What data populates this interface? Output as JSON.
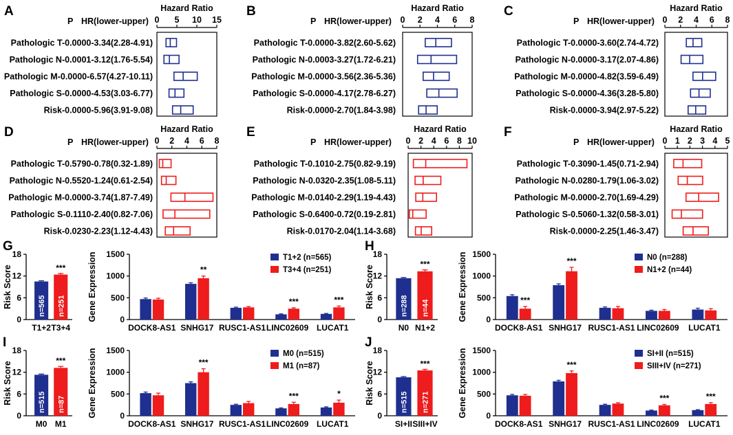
{
  "colors": {
    "blue": "#1f2f8f",
    "red": "#ee1c1c",
    "black": "#000000"
  },
  "chart_data": [
    {
      "id": "forest-A",
      "panel_label": "A",
      "type": "forest",
      "title": "Hazard Ratio",
      "p_header": "P",
      "hr_header": "HR(lower-upper)",
      "axis_ticks": [
        0,
        5,
        10,
        15
      ],
      "xlim": [
        0,
        15
      ],
      "color": "blue",
      "rows": [
        {
          "label": "Pathologic T-0.0000-3.34(2.28-4.91)",
          "lower": 2.28,
          "hr": 3.34,
          "upper": 4.91
        },
        {
          "label": "Pathologic N-0.0001-3.12(1.76-5.54)",
          "lower": 1.76,
          "hr": 3.12,
          "upper": 5.54
        },
        {
          "label": "Pathologic M-0.0000-6.57(4.27-10.11)",
          "lower": 4.27,
          "hr": 6.57,
          "upper": 10.11
        },
        {
          "label": "Pathologic S-0.0000-4.53(3.03-6.77)",
          "lower": 3.03,
          "hr": 4.53,
          "upper": 6.77
        },
        {
          "label": "Risk-0.0000-5.96(3.91-9.08)",
          "lower": 3.91,
          "hr": 5.96,
          "upper": 9.08
        }
      ]
    },
    {
      "id": "forest-B",
      "panel_label": "B",
      "type": "forest",
      "title": "Hazard Ratio",
      "p_header": "P",
      "hr_header": "HR(lower-upper)",
      "axis_ticks": [
        0,
        2,
        4,
        6,
        8
      ],
      "xlim": [
        0,
        8
      ],
      "color": "blue",
      "rows": [
        {
          "label": "Pathologic T-0.0000-3.82(2.60-5.62)",
          "lower": 2.6,
          "hr": 3.82,
          "upper": 5.62
        },
        {
          "label": "Pathologic N-0.0003-3.27(1.72-6.21)",
          "lower": 1.72,
          "hr": 3.27,
          "upper": 6.21
        },
        {
          "label": "Pathologic M-0.0000-3.56(2.36-5.36)",
          "lower": 2.36,
          "hr": 3.56,
          "upper": 5.36
        },
        {
          "label": "Pathologic S-0.0000-4.17(2.78-6.27)",
          "lower": 2.78,
          "hr": 4.17,
          "upper": 6.27
        },
        {
          "label": "Risk-0.0000-2.70(1.84-3.98)",
          "lower": 1.84,
          "hr": 2.7,
          "upper": 3.98
        }
      ]
    },
    {
      "id": "forest-C",
      "panel_label": "C",
      "type": "forest",
      "title": "Hazard Ratio",
      "p_header": "P",
      "hr_header": "HR(lower-upper)",
      "axis_ticks": [
        0,
        2,
        4,
        6,
        8
      ],
      "xlim": [
        0,
        8
      ],
      "color": "blue",
      "rows": [
        {
          "label": "Pathologic T-0.0000-3.60(2.74-4.72)",
          "lower": 2.74,
          "hr": 3.6,
          "upper": 4.72
        },
        {
          "label": "Pathologic N-0.0000-3.17(2.07-4.86)",
          "lower": 2.07,
          "hr": 3.17,
          "upper": 4.86
        },
        {
          "label": "Pathologic M-0.0000-4.82(3.59-6.49)",
          "lower": 3.59,
          "hr": 4.82,
          "upper": 6.49
        },
        {
          "label": "Pathologic S-0.0000-4.36(3.28-5.80)",
          "lower": 3.28,
          "hr": 4.36,
          "upper": 5.8
        },
        {
          "label": "Risk-0.0000-3.94(2.97-5.22)",
          "lower": 2.97,
          "hr": 3.94,
          "upper": 5.22
        }
      ]
    },
    {
      "id": "forest-D",
      "panel_label": "D",
      "type": "forest",
      "title": "Hazard Ratio",
      "p_header": "P",
      "hr_header": "HR(lower-upper)",
      "axis_ticks": [
        0,
        2,
        4,
        6,
        8
      ],
      "xlim": [
        0,
        8
      ],
      "color": "red",
      "rows": [
        {
          "label": "Pathologic T-0.5790-0.78(0.32-1.89)",
          "lower": 0.32,
          "hr": 0.78,
          "upper": 1.89
        },
        {
          "label": "Pathologic N-0.5520-1.24(0.61-2.54)",
          "lower": 0.61,
          "hr": 1.24,
          "upper": 2.54
        },
        {
          "label": "Pathologic M-0.0000-3.74(1.87-7.49)",
          "lower": 1.87,
          "hr": 3.74,
          "upper": 7.49
        },
        {
          "label": "Pathologic S-0.1110-2.40(0.82-7.06)",
          "lower": 0.82,
          "hr": 2.4,
          "upper": 7.06
        },
        {
          "label": "Risk-0.0230-2.23(1.12-4.43)",
          "lower": 1.12,
          "hr": 2.23,
          "upper": 4.43
        }
      ]
    },
    {
      "id": "forest-E",
      "panel_label": "E",
      "type": "forest",
      "title": "Hazard Ratio",
      "p_header": "P",
      "hr_header": "HR(lower-upper)",
      "axis_ticks": [
        0,
        2,
        4,
        6,
        8,
        10
      ],
      "xlim": [
        0,
        10
      ],
      "color": "red",
      "rows": [
        {
          "label": "Pathologic T-0.1010-2.75(0.82-9.19)",
          "lower": 0.82,
          "hr": 2.75,
          "upper": 9.19
        },
        {
          "label": "Pathologic N-0.0320-2.35(1.08-5.11)",
          "lower": 1.08,
          "hr": 2.35,
          "upper": 5.11
        },
        {
          "label": "Pathologic M-0.0140-2.29(1.19-4.43)",
          "lower": 1.19,
          "hr": 2.29,
          "upper": 4.43
        },
        {
          "label": "Pathologic S-0.6400-0.72(0.19-2.81)",
          "lower": 0.19,
          "hr": 0.72,
          "upper": 2.81
        },
        {
          "label": "Risk-0.0170-2.04(1.14-3.68)",
          "lower": 1.14,
          "hr": 2.04,
          "upper": 3.68
        }
      ]
    },
    {
      "id": "forest-F",
      "panel_label": "F",
      "type": "forest",
      "title": "Hazard Ratio",
      "p_header": "P",
      "hr_header": "HR(lower-upper)",
      "axis_ticks": [
        0,
        1,
        2,
        3,
        4,
        5
      ],
      "xlim": [
        0,
        5
      ],
      "color": "red",
      "rows": [
        {
          "label": "Pathologic T-0.3090-1.45(0.71-2.94)",
          "lower": 0.71,
          "hr": 1.45,
          "upper": 2.94
        },
        {
          "label": "Pathologic N-0.0280-1.79(1.06-3.02)",
          "lower": 1.06,
          "hr": 1.79,
          "upper": 3.02
        },
        {
          "label": "Pathologic M-0.0000-2.70(1.69-4.29)",
          "lower": 1.69,
          "hr": 2.7,
          "upper": 4.29
        },
        {
          "label": "Pathologic S-0.5060-1.32(0.58-3.01)",
          "lower": 0.58,
          "hr": 1.32,
          "upper": 3.01
        },
        {
          "label": "Risk-0.0000-2.25(1.46-3.47)",
          "lower": 1.46,
          "hr": 2.25,
          "upper": 3.47
        }
      ]
    },
    {
      "id": "risk-G",
      "panel_label": "G",
      "type": "bar",
      "ylabel": "Risk Score",
      "ylim": [
        0,
        18
      ],
      "ticks": [
        0,
        6,
        12,
        18
      ],
      "categories": [
        "T1+2",
        "T3+4"
      ],
      "values": [
        10.5,
        12.4
      ],
      "errors": [
        0.2,
        0.3
      ],
      "bar_labels": [
        "n=565",
        "n=251"
      ],
      "significance": "***"
    },
    {
      "id": "gene-G",
      "type": "bar",
      "ylabel": "Gene Expression",
      "ylim": [
        0,
        1500
      ],
      "ticks": [
        0,
        500,
        1000,
        1500
      ],
      "categories": [
        "DOCK8-AS1",
        "SNHG17",
        "RUSC1-AS1",
        "LINC02609",
        "LUCAT1"
      ],
      "series": [
        {
          "name": "T1+2 (n=565)",
          "values": [
            470,
            820,
            270,
            120,
            130
          ],
          "errors": [
            25,
            25,
            15,
            10,
            10
          ]
        },
        {
          "name": "T3+4 (n=251)",
          "values": [
            460,
            950,
            280,
            250,
            280
          ],
          "errors": [
            30,
            50,
            20,
            20,
            30
          ]
        }
      ],
      "significance": [
        "",
        "**",
        "",
        "***",
        "***"
      ]
    },
    {
      "id": "risk-H",
      "panel_label": "H",
      "type": "bar",
      "ylabel": "Risk Score",
      "ylim": [
        0,
        18
      ],
      "ticks": [
        0,
        6,
        12,
        18
      ],
      "categories": [
        "N0",
        "N1+2"
      ],
      "values": [
        11.4,
        13.3
      ],
      "errors": [
        0.2,
        0.4
      ],
      "bar_labels": [
        "n=288",
        "n=44"
      ],
      "significance": "***"
    },
    {
      "id": "gene-H",
      "type": "bar",
      "ylabel": "Gene Expression",
      "ylim": [
        0,
        1500
      ],
      "ticks": [
        0,
        500,
        1000,
        1500
      ],
      "categories": [
        "DOCK8-AS1",
        "SNHG17",
        "RUSC1-AS1",
        "LINC02609",
        "LUCAT1"
      ],
      "series": [
        {
          "name": "N0 (n=288)",
          "values": [
            540,
            790,
            270,
            200,
            230
          ],
          "errors": [
            30,
            30,
            20,
            15,
            30
          ]
        },
        {
          "name": "N1+2 (n=44)",
          "values": [
            250,
            1110,
            260,
            200,
            210
          ],
          "errors": [
            50,
            90,
            40,
            30,
            40
          ]
        }
      ],
      "significance": [
        "***",
        "***",
        "",
        "",
        ""
      ]
    },
    {
      "id": "risk-I",
      "panel_label": "I",
      "type": "bar",
      "ylabel": "Risk Score",
      "ylim": [
        0,
        18
      ],
      "ticks": [
        0,
        6,
        12,
        18
      ],
      "categories": [
        "M0",
        "M1"
      ],
      "values": [
        11.3,
        13.2
      ],
      "errors": [
        0.2,
        0.4
      ],
      "bar_labels": [
        "n=515",
        "n=87"
      ],
      "significance": "***"
    },
    {
      "id": "gene-I",
      "type": "bar",
      "ylabel": "Gene Expression",
      "ylim": [
        0,
        1500
      ],
      "ticks": [
        0,
        500,
        1000,
        1500
      ],
      "categories": [
        "DOCK8-AS1",
        "SNHG17",
        "RUSC1-AS1",
        "LINC02609",
        "LUCAT1"
      ],
      "series": [
        {
          "name": "M0 (n=515)",
          "values": [
            520,
            750,
            250,
            170,
            190
          ],
          "errors": [
            25,
            30,
            15,
            10,
            15
          ]
        },
        {
          "name": "M1 (n=87)",
          "values": [
            470,
            1000,
            290,
            270,
            300
          ],
          "errors": [
            50,
            80,
            40,
            40,
            60
          ]
        }
      ],
      "significance": [
        "",
        "***",
        "",
        "***",
        "*"
      ]
    },
    {
      "id": "risk-J",
      "panel_label": "J",
      "type": "bar",
      "ylabel": "Risk Score",
      "ylim": [
        0,
        18
      ],
      "ticks": [
        0,
        6,
        12,
        18
      ],
      "categories": [
        "SI+II",
        "SIII+IV"
      ],
      "values": [
        10.6,
        12.5
      ],
      "errors": [
        0.2,
        0.3
      ],
      "bar_labels": [
        "n=515",
        "n=271"
      ],
      "significance": "***"
    },
    {
      "id": "gene-J",
      "type": "bar",
      "ylabel": "Gene Expression",
      "ylim": [
        0,
        1500
      ],
      "ticks": [
        0,
        500,
        1000,
        1500
      ],
      "categories": [
        "DOCK8-AS1",
        "SNHG17",
        "RUSC1-AS1",
        "LINC02609",
        "LUCAT1"
      ],
      "series": [
        {
          "name": "SI+II (n=515)",
          "values": [
            470,
            790,
            250,
            120,
            130
          ],
          "errors": [
            20,
            25,
            15,
            10,
            10
          ]
        },
        {
          "name": "SIII+IV (n=271)",
          "values": [
            460,
            980,
            280,
            240,
            270
          ],
          "errors": [
            30,
            50,
            20,
            20,
            30
          ]
        }
      ],
      "significance": [
        "",
        "***",
        "",
        "***",
        "***"
      ]
    }
  ]
}
